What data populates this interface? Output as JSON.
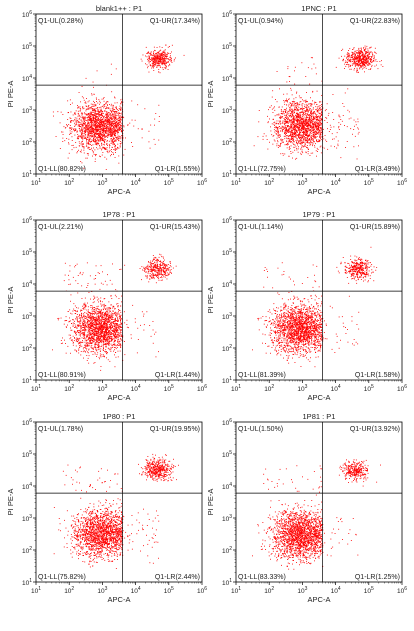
{
  "figure": {
    "xlabel": "APC-A",
    "ylabel": "PI PE-A",
    "point_color": "#ff0000"
  },
  "chart_data": [
    {
      "type": "scatter",
      "title": "blank1++ : P1",
      "xlabel": "APC-A",
      "ylabel": "PI PE-A",
      "x_scale": "log",
      "y_scale": "log",
      "xlim": [
        10,
        1000000
      ],
      "ylim": [
        10,
        1000000
      ],
      "x_ticks": [
        "10^1",
        "10^2",
        "10^3",
        "10^4",
        "10^5",
        "10^6"
      ],
      "y_ticks": [
        "10^1",
        "10^2",
        "10^3",
        "10^4",
        "10^5",
        "10^6"
      ],
      "gate_x": 4000,
      "gate_y": 6000,
      "quadrants": {
        "UL": {
          "label": "Q1-UL",
          "percent": "0.28%"
        },
        "UR": {
          "label": "Q1-UR",
          "percent": "17.34%"
        },
        "LL": {
          "label": "Q1-LL",
          "percent": "80.82%"
        },
        "LR": {
          "label": "Q1-LR",
          "percent": "1.55%"
        }
      },
      "clusters": [
        {
          "center_x": 800,
          "center_y": 300,
          "spread_log": 0.38
        },
        {
          "center_x": 50000,
          "center_y": 40000,
          "spread_log": 0.15
        }
      ]
    },
    {
      "type": "scatter",
      "title": "1PNC : P1",
      "xlabel": "APC-A",
      "ylabel": "PI PE-A",
      "x_scale": "log",
      "y_scale": "log",
      "xlim": [
        10,
        1000000
      ],
      "ylim": [
        10,
        1000000
      ],
      "x_ticks": [
        "10^1",
        "10^2",
        "10^3",
        "10^4",
        "10^5",
        "10^6"
      ],
      "y_ticks": [
        "10^1",
        "10^2",
        "10^3",
        "10^4",
        "10^5",
        "10^6"
      ],
      "gate_x": 4000,
      "gate_y": 6000,
      "quadrants": {
        "UL": {
          "label": "Q1-UL",
          "percent": "0.94%"
        },
        "UR": {
          "label": "Q1-UR",
          "percent": "22.83%"
        },
        "LL": {
          "label": "Q1-LL",
          "percent": "72.75%"
        },
        "LR": {
          "label": "Q1-LR",
          "percent": "3.49%"
        }
      },
      "clusters": [
        {
          "center_x": 900,
          "center_y": 350,
          "spread_log": 0.38
        },
        {
          "center_x": 55000,
          "center_y": 40000,
          "spread_log": 0.17
        }
      ]
    },
    {
      "type": "scatter",
      "title": "1P78 : P1",
      "xlabel": "APC-A",
      "ylabel": "PI PE-A",
      "x_scale": "log",
      "y_scale": "log",
      "xlim": [
        10,
        1000000
      ],
      "ylim": [
        10,
        1000000
      ],
      "x_ticks": [
        "10^1",
        "10^2",
        "10^3",
        "10^4",
        "10^5",
        "10^6"
      ],
      "y_ticks": [
        "10^1",
        "10^2",
        "10^3",
        "10^4",
        "10^5",
        "10^6"
      ],
      "gate_x": 4000,
      "gate_y": 6000,
      "quadrants": {
        "UL": {
          "label": "Q1-UL",
          "percent": "2.21%"
        },
        "UR": {
          "label": "Q1-UR",
          "percent": "15.43%"
        },
        "LL": {
          "label": "Q1-LL",
          "percent": "80.91%"
        },
        "LR": {
          "label": "Q1-LR",
          "percent": "1.44%"
        }
      },
      "clusters": [
        {
          "center_x": 800,
          "center_y": 400,
          "spread_log": 0.38
        },
        {
          "center_x": 45000,
          "center_y": 30000,
          "spread_log": 0.16
        }
      ]
    },
    {
      "type": "scatter",
      "title": "1P79 : P1",
      "xlabel": "APC-A",
      "ylabel": "PI PE-A",
      "x_scale": "log",
      "y_scale": "log",
      "xlim": [
        10,
        1000000
      ],
      "ylim": [
        10,
        1000000
      ],
      "x_ticks": [
        "10^1",
        "10^2",
        "10^3",
        "10^4",
        "10^5",
        "10^6"
      ],
      "y_ticks": [
        "10^1",
        "10^2",
        "10^3",
        "10^4",
        "10^5",
        "10^6"
      ],
      "gate_x": 4000,
      "gate_y": 6000,
      "quadrants": {
        "UL": {
          "label": "Q1-UL",
          "percent": "1.14%"
        },
        "UR": {
          "label": "Q1-UR",
          "percent": "15.89%"
        },
        "LL": {
          "label": "Q1-LL",
          "percent": "81.39%"
        },
        "LR": {
          "label": "Q1-LR",
          "percent": "1.58%"
        }
      },
      "clusters": [
        {
          "center_x": 800,
          "center_y": 400,
          "spread_log": 0.38
        },
        {
          "center_x": 45000,
          "center_y": 30000,
          "spread_log": 0.16
        }
      ]
    },
    {
      "type": "scatter",
      "title": "1P80 : P1",
      "xlabel": "APC-A",
      "ylabel": "PI PE-A",
      "x_scale": "log",
      "y_scale": "log",
      "xlim": [
        10,
        1000000
      ],
      "ylim": [
        10,
        1000000
      ],
      "x_ticks": [
        "10^1",
        "10^2",
        "10^3",
        "10^4",
        "10^5",
        "10^6"
      ],
      "y_ticks": [
        "10^1",
        "10^2",
        "10^3",
        "10^4",
        "10^5",
        "10^6"
      ],
      "gate_x": 4000,
      "gate_y": 6000,
      "quadrants": {
        "UL": {
          "label": "Q1-UL",
          "percent": "1.78%"
        },
        "UR": {
          "label": "Q1-UR",
          "percent": "19.95%"
        },
        "LL": {
          "label": "Q1-LL",
          "percent": "75.82%"
        },
        "LR": {
          "label": "Q1-LR",
          "percent": "2.44%"
        }
      },
      "clusters": [
        {
          "center_x": 900,
          "center_y": 350,
          "spread_log": 0.38
        },
        {
          "center_x": 45000,
          "center_y": 35000,
          "spread_log": 0.16
        }
      ]
    },
    {
      "type": "scatter",
      "title": "1P81 : P1",
      "xlabel": "APC-A",
      "ylabel": "PI PE-A",
      "x_scale": "log",
      "y_scale": "log",
      "xlim": [
        10,
        1000000
      ],
      "ylim": [
        10,
        1000000
      ],
      "x_ticks": [
        "10^1",
        "10^2",
        "10^3",
        "10^4",
        "10^5",
        "10^6"
      ],
      "y_ticks": [
        "10^1",
        "10^2",
        "10^3",
        "10^4",
        "10^5",
        "10^6"
      ],
      "gate_x": 4000,
      "gate_y": 6000,
      "quadrants": {
        "UL": {
          "label": "Q1-UL",
          "percent": "1.50%"
        },
        "UR": {
          "label": "Q1-UR",
          "percent": "13.92%"
        },
        "LL": {
          "label": "Q1-LL",
          "percent": "83.33%"
        },
        "LR": {
          "label": "Q1-LR",
          "percent": "1.25%"
        }
      },
      "clusters": [
        {
          "center_x": 800,
          "center_y": 300,
          "spread_log": 0.38
        },
        {
          "center_x": 40000,
          "center_y": 30000,
          "spread_log": 0.15
        }
      ]
    }
  ]
}
